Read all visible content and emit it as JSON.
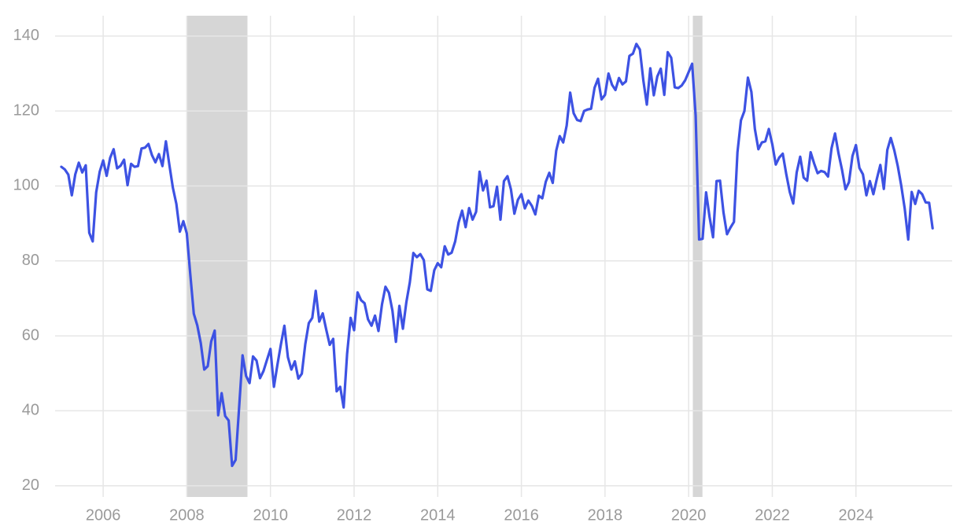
{
  "chart_data": {
    "type": "line",
    "color": "#3d52e3",
    "grid": true,
    "shade_color": "#d6d6d6",
    "xlim": [
      2004.85,
      2026.3
    ],
    "ylim": [
      17,
      145
    ],
    "xticks": [
      2006,
      2008,
      2010,
      2012,
      2014,
      2016,
      2018,
      2020,
      2022,
      2024
    ],
    "yticks": [
      20,
      40,
      60,
      80,
      100,
      120,
      140
    ],
    "recessions": [
      [
        2008.0,
        2009.45
      ],
      [
        2020.1,
        2020.33
      ]
    ],
    "x": [
      2005,
      2005.083,
      2005.167,
      2005.25,
      2005.333,
      2005.417,
      2005.5,
      2005.583,
      2005.667,
      2005.75,
      2005.833,
      2005.917,
      2006,
      2006.083,
      2006.167,
      2006.25,
      2006.333,
      2006.417,
      2006.5,
      2006.583,
      2006.667,
      2006.75,
      2006.833,
      2006.917,
      2007,
      2007.083,
      2007.167,
      2007.25,
      2007.333,
      2007.417,
      2007.5,
      2007.583,
      2007.667,
      2007.75,
      2007.833,
      2007.917,
      2008,
      2008.083,
      2008.167,
      2008.25,
      2008.333,
      2008.417,
      2008.5,
      2008.583,
      2008.667,
      2008.75,
      2008.833,
      2008.917,
      2009,
      2009.083,
      2009.167,
      2009.25,
      2009.333,
      2009.417,
      2009.5,
      2009.583,
      2009.667,
      2009.75,
      2009.833,
      2009.917,
      2010,
      2010.083,
      2010.167,
      2010.25,
      2010.333,
      2010.417,
      2010.5,
      2010.583,
      2010.667,
      2010.75,
      2010.833,
      2010.917,
      2011,
      2011.083,
      2011.167,
      2011.25,
      2011.333,
      2011.417,
      2011.5,
      2011.583,
      2011.667,
      2011.75,
      2011.833,
      2011.917,
      2012,
      2012.083,
      2012.167,
      2012.25,
      2012.333,
      2012.417,
      2012.5,
      2012.583,
      2012.667,
      2012.75,
      2012.833,
      2012.917,
      2013,
      2013.083,
      2013.167,
      2013.25,
      2013.333,
      2013.417,
      2013.5,
      2013.583,
      2013.667,
      2013.75,
      2013.833,
      2013.917,
      2014,
      2014.083,
      2014.167,
      2014.25,
      2014.333,
      2014.417,
      2014.5,
      2014.583,
      2014.667,
      2014.75,
      2014.833,
      2014.917,
      2015,
      2015.083,
      2015.167,
      2015.25,
      2015.333,
      2015.417,
      2015.5,
      2015.583,
      2015.667,
      2015.75,
      2015.833,
      2015.917,
      2016,
      2016.083,
      2016.167,
      2016.25,
      2016.333,
      2016.417,
      2016.5,
      2016.583,
      2016.667,
      2016.75,
      2016.833,
      2016.917,
      2017,
      2017.083,
      2017.167,
      2017.25,
      2017.333,
      2017.417,
      2017.5,
      2017.583,
      2017.667,
      2017.75,
      2017.833,
      2017.917,
      2018,
      2018.083,
      2018.167,
      2018.25,
      2018.333,
      2018.417,
      2018.5,
      2018.583,
      2018.667,
      2018.75,
      2018.833,
      2018.917,
      2019,
      2019.083,
      2019.167,
      2019.25,
      2019.333,
      2019.417,
      2019.5,
      2019.583,
      2019.667,
      2019.75,
      2019.833,
      2019.917,
      2020,
      2020.083,
      2020.167,
      2020.25,
      2020.333,
      2020.417,
      2020.5,
      2020.583,
      2020.667,
      2020.75,
      2020.833,
      2020.917,
      2021,
      2021.083,
      2021.167,
      2021.25,
      2021.333,
      2021.417,
      2021.5,
      2021.583,
      2021.667,
      2021.75,
      2021.833,
      2021.917,
      2022,
      2022.083,
      2022.167,
      2022.25,
      2022.333,
      2022.417,
      2022.5,
      2022.583,
      2022.667,
      2022.75,
      2022.833,
      2022.917,
      2023,
      2023.083,
      2023.167,
      2023.25,
      2023.333,
      2023.417,
      2023.5,
      2023.583,
      2023.667,
      2023.75,
      2023.833,
      2023.917,
      2024,
      2024.083,
      2024.167,
      2024.25,
      2024.333,
      2024.417,
      2024.5,
      2024.583,
      2024.667,
      2024.75,
      2024.833,
      2024.917,
      2025,
      2025.083,
      2025.167,
      2025.25,
      2025.333,
      2025.417,
      2025.5,
      2025.583,
      2025.667,
      2025.75,
      2025.833
    ],
    "values": [
      105.1,
      104.4,
      103.0,
      97.5,
      103.1,
      106.2,
      103.6,
      105.5,
      87.5,
      85.2,
      98.3,
      103.8,
      106.8,
      102.7,
      107.5,
      109.8,
      104.7,
      105.4,
      107.0,
      100.2,
      105.9,
      105.1,
      105.3,
      110.0,
      110.2,
      111.2,
      108.2,
      106.3,
      108.5,
      105.3,
      111.9,
      105.6,
      99.5,
      95.2,
      87.8,
      90.6,
      87.3,
      76.4,
      65.9,
      62.8,
      58.1,
      51.0,
      51.9,
      58.5,
      61.4,
      38.8,
      44.7,
      38.6,
      37.4,
      25.3,
      26.9,
      40.8,
      54.8,
      49.3,
      47.4,
      54.5,
      53.4,
      48.7,
      50.6,
      53.6,
      56.5,
      46.4,
      52.3,
      57.7,
      62.7,
      54.3,
      51.0,
      53.2,
      48.6,
      49.9,
      57.8,
      63.4,
      64.8,
      72.0,
      63.8,
      66.0,
      61.7,
      57.6,
      59.2,
      45.2,
      46.4,
      40.9,
      55.2,
      64.8,
      61.5,
      71.6,
      69.5,
      68.7,
      64.4,
      62.7,
      65.4,
      61.3,
      68.4,
      73.1,
      71.5,
      66.7,
      58.4,
      68.0,
      61.9,
      69.0,
      74.3,
      82.1,
      81.0,
      81.8,
      80.2,
      72.4,
      72.0,
      77.5,
      79.4,
      78.3,
      83.9,
      81.7,
      82.2,
      85.2,
      90.3,
      93.4,
      89.0,
      94.1,
      91.0,
      93.1,
      103.8,
      98.8,
      101.4,
      94.3,
      94.6,
      99.8,
      91.0,
      101.3,
      102.6,
      99.1,
      92.6,
      96.3,
      97.8,
      94.0,
      96.1,
      94.7,
      92.4,
      97.4,
      96.7,
      101.1,
      103.5,
      100.8,
      109.4,
      113.3,
      111.6,
      116.1,
      124.9,
      119.4,
      117.6,
      117.3,
      120.0,
      120.4,
      120.6,
      126.2,
      128.6,
      123.1,
      124.3,
      130.0,
      127.0,
      125.6,
      128.8,
      127.1,
      127.9,
      134.7,
      135.3,
      137.9,
      136.4,
      128.1,
      121.7,
      131.4,
      124.2,
      129.2,
      131.3,
      124.3,
      135.7,
      134.2,
      126.3,
      126.1,
      126.8,
      128.2,
      130.4,
      132.6,
      118.8,
      85.7,
      85.9,
      98.3,
      91.7,
      86.3,
      101.3,
      101.4,
      92.9,
      87.1,
      88.9,
      90.4,
      109.0,
      117.5,
      120.0,
      128.9,
      125.1,
      115.2,
      109.8,
      111.6,
      111.9,
      115.2,
      111.1,
      105.7,
      107.6,
      108.6,
      103.2,
      98.4,
      95.3,
      103.6,
      107.8,
      102.2,
      101.4,
      109.0,
      106.0,
      103.4,
      104.0,
      103.7,
      102.5,
      110.1,
      114.0,
      108.7,
      104.3,
      99.1,
      101.0,
      108.0,
      110.9,
      104.8,
      103.1,
      97.5,
      101.3,
      97.8,
      101.9,
      105.6,
      99.2,
      109.6,
      112.8,
      109.5,
      105.3,
      100.1,
      93.9,
      85.7,
      98.4,
      95.2,
      98.7,
      97.8,
      95.6,
      95.5,
      88.7
    ]
  }
}
